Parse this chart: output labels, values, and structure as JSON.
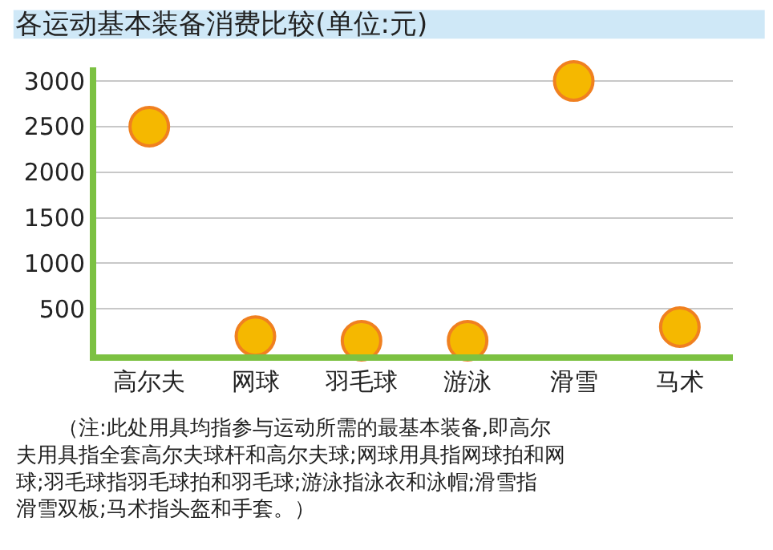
{
  "chart_data": {
    "type": "scatter",
    "title": "各运动基本装备消费比较(单位:元)",
    "categories": [
      "高尔夫",
      "网球",
      "羽毛球",
      "游泳",
      "滑雪",
      "马术"
    ],
    "series": [
      {
        "color": "#f5b800",
        "values": [
          2500,
          200,
          150,
          150,
          3000,
          300
        ]
      }
    ],
    "ylim": [
      0,
      3150
    ],
    "yticks": [
      500,
      1000,
      1500,
      2000,
      2500,
      3000
    ],
    "grid": "y",
    "marker": "circle",
    "legend": false,
    "annotations": [
      "（注:此处用具均指参与运动所需的最基本装备,即高尔夫用具指全套高尔夫球杆和高尔夫球;网球用具指网球拍和网球;羽毛球指羽毛球拍和羽毛球;游泳指泳衣和泳帽;滑雪指滑雪双板;马术指头盔和手套。）"
    ]
  }
}
